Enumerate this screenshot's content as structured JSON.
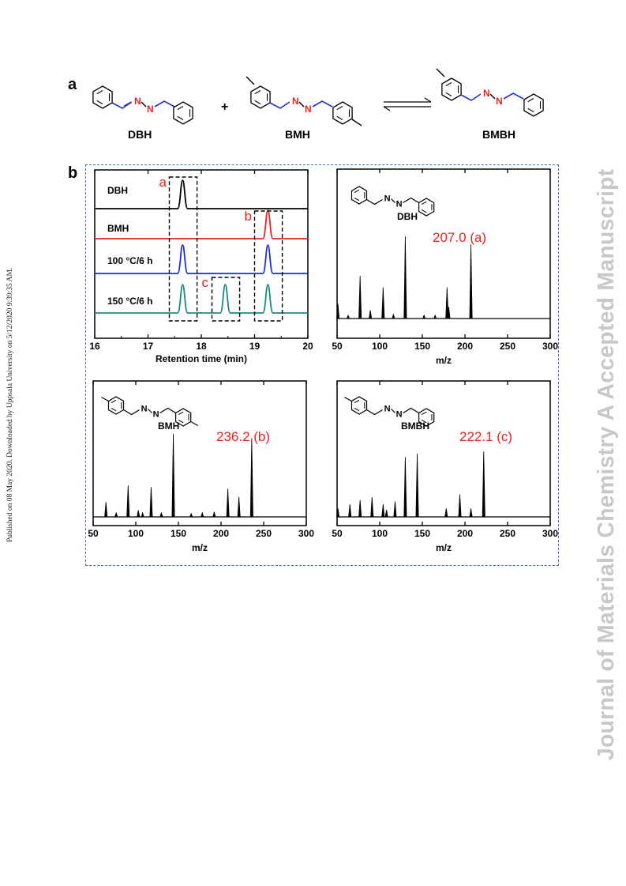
{
  "side_text": {
    "published": "Published on 08 May 2020. Downloaded by Uppsala University on 5/12/2020 9:39:35 AM.",
    "journal": "Journal of Materials Chemistry A Accepted Manuscript"
  },
  "panel_a": {
    "letter": "a",
    "plus": "+",
    "compounds": [
      {
        "label": "DBH",
        "atom_1": "N",
        "atom_2": "N"
      },
      {
        "label": "BMH",
        "atom_1": "N",
        "atom_2": "N"
      },
      {
        "label": "BMBH",
        "atom_1": "N",
        "atom_2": "N"
      }
    ]
  },
  "panel_b": {
    "letter": "b"
  },
  "chart_data": [
    {
      "type": "line",
      "xlabel": "Retention time (min)",
      "ylabel": "",
      "xlim": [
        16,
        20
      ],
      "xticks": [
        16,
        17,
        18,
        19,
        20
      ],
      "series": [
        {
          "name": "DBH",
          "color": "#000000",
          "peaks": [
            {
              "x": 17.65,
              "h": 0.85
            }
          ]
        },
        {
          "name": "BMH",
          "color": "#e8231f",
          "peaks": [
            {
              "x": 19.25,
              "h": 0.85
            }
          ]
        },
        {
          "name": "100 °C/6 h",
          "color": "#1f2fd6",
          "peaks": [
            {
              "x": 17.65,
              "h": 0.85
            },
            {
              "x": 19.25,
              "h": 0.85
            }
          ]
        },
        {
          "name": "150 °C/6 h",
          "color": "#1a8a80",
          "peaks": [
            {
              "x": 17.65,
              "h": 0.85
            },
            {
              "x": 18.45,
              "h": 0.85
            },
            {
              "x": 19.25,
              "h": 0.85
            }
          ]
        }
      ],
      "boxes": [
        {
          "label": "a",
          "x0": 17.4,
          "x1": 17.92
        },
        {
          "label": "c",
          "x0": 18.2,
          "x1": 18.72
        },
        {
          "label": "b",
          "x0": 19.0,
          "x1": 19.52
        }
      ]
    },
    {
      "type": "bar",
      "title": "DBH",
      "xlabel": "m/z",
      "ylabel": "",
      "xlim": [
        50,
        300
      ],
      "xticks": [
        50,
        100,
        150,
        200,
        250,
        300
      ],
      "annotation": "207.0 (a)",
      "molecule": {
        "atom_1": "N",
        "atom_2": "N"
      },
      "x": [
        51,
        63,
        77,
        89,
        104,
        116,
        130,
        152,
        165,
        179,
        181,
        207
      ],
      "values": [
        18,
        4,
        52,
        10,
        38,
        5,
        100,
        4,
        4,
        38,
        14,
        90
      ]
    },
    {
      "type": "bar",
      "title": "BMH",
      "xlabel": "m/z",
      "ylabel": "",
      "xlim": [
        50,
        300
      ],
      "xticks": [
        50,
        100,
        150,
        200,
        250,
        300
      ],
      "annotation": "236.2 (b)",
      "molecule": {
        "atom_1": "N",
        "atom_2": "N"
      },
      "x": [
        65,
        77,
        91,
        103,
        108,
        118,
        130,
        144,
        165,
        178,
        192,
        208,
        221,
        236
      ],
      "values": [
        18,
        5,
        38,
        8,
        5,
        36,
        5,
        100,
        4,
        5,
        6,
        34,
        24,
        95
      ]
    },
    {
      "type": "bar",
      "title": "BMBH",
      "xlabel": "m/z",
      "ylabel": "",
      "xlim": [
        50,
        300
      ],
      "xticks": [
        50,
        100,
        150,
        200,
        250,
        300
      ],
      "annotation": "222.1 (c)",
      "molecule": {
        "atom_1": "N",
        "atom_2": "N"
      },
      "x": [
        51,
        65,
        77,
        91,
        104,
        108,
        118,
        130,
        144,
        178,
        194,
        207,
        222
      ],
      "values": [
        12,
        18,
        24,
        28,
        18,
        10,
        22,
        85,
        90,
        12,
        32,
        12,
        93
      ]
    }
  ]
}
